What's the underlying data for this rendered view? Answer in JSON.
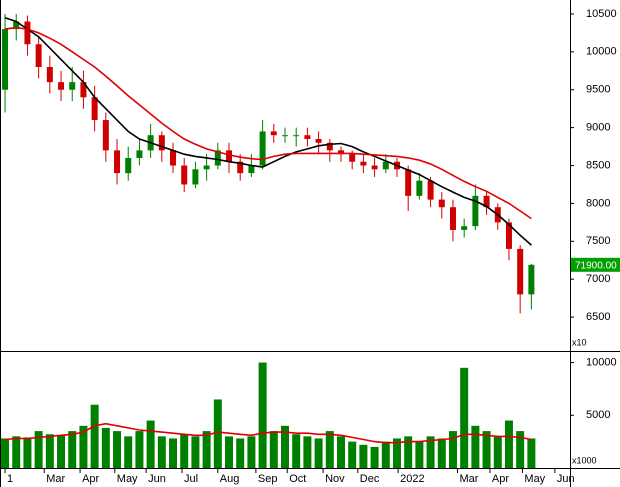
{
  "chart_data": [
    {
      "type": "candlestick",
      "up_color": "#008000",
      "down_color": "#d00000",
      "open": [
        9500,
        10300,
        10400,
        10100,
        9800,
        9600,
        9500,
        9600,
        9400,
        9100,
        8700,
        8400,
        8600,
        8700,
        8900,
        8700,
        8500,
        8250,
        8450,
        8500,
        8700,
        8550,
        8400,
        8500,
        8950,
        8900,
        8900,
        8900,
        8850,
        8800,
        8700,
        8650,
        8550,
        8500,
        8450,
        8550,
        8450,
        8100,
        8300,
        8050,
        7950,
        7650,
        7700,
        8100,
        7950,
        7750,
        7400,
        6800
      ],
      "high": [
        10500,
        10500,
        10480,
        10200,
        9950,
        9750,
        9800,
        9750,
        9550,
        9200,
        8850,
        8750,
        8850,
        9050,
        8950,
        8800,
        8600,
        8550,
        8650,
        8800,
        8800,
        8650,
        8650,
        9100,
        9050,
        9000,
        9000,
        9000,
        8950,
        8850,
        8750,
        8700,
        8650,
        8600,
        8650,
        8600,
        8500,
        8400,
        8350,
        8150,
        8050,
        7800,
        8250,
        8150,
        8000,
        7800,
        7450,
        7200
      ],
      "low": [
        9200,
        10150,
        9950,
        9650,
        9450,
        9350,
        9350,
        9250,
        8950,
        8550,
        8250,
        8300,
        8500,
        8600,
        8550,
        8400,
        8150,
        8200,
        8300,
        8450,
        8400,
        8300,
        8350,
        8450,
        8800,
        8800,
        8750,
        8750,
        8650,
        8550,
        8550,
        8450,
        8400,
        8350,
        8400,
        8350,
        7900,
        8050,
        7950,
        7800,
        7500,
        7550,
        7650,
        7850,
        7650,
        7250,
        6550,
        6600
      ],
      "close": [
        10300,
        10400,
        10100,
        9800,
        9600,
        9500,
        9600,
        9400,
        9100,
        8700,
        8400,
        8600,
        8700,
        8900,
        8700,
        8500,
        8250,
        8450,
        8500,
        8700,
        8550,
        8400,
        8500,
        8950,
        8900,
        8900,
        8900,
        8850,
        8800,
        8700,
        8650,
        8550,
        8500,
        8450,
        8550,
        8450,
        8100,
        8300,
        8050,
        7950,
        7650,
        7700,
        8100,
        7950,
        7750,
        7400,
        6800,
        7190
      ],
      "series": [
        {
          "color": "#000000",
          "values": [
            10450,
            10400,
            10300,
            10200,
            10050,
            9900,
            9750,
            9600,
            9400,
            9250,
            9100,
            8950,
            8850,
            8800,
            8750,
            8700,
            8650,
            8620,
            8600,
            8580,
            8550,
            8530,
            8500,
            8480,
            8550,
            8620,
            8680,
            8720,
            8760,
            8780,
            8790,
            8750,
            8680,
            8620,
            8560,
            8500,
            8440,
            8380,
            8300,
            8220,
            8150,
            8080,
            8030,
            7960,
            7850,
            7720,
            7580,
            7450
          ]
        },
        {
          "color": "#e00000",
          "values": [
            10300,
            10320,
            10300,
            10250,
            10180,
            10100,
            10000,
            9900,
            9800,
            9680,
            9550,
            9420,
            9300,
            9180,
            9060,
            8950,
            8850,
            8780,
            8720,
            8680,
            8640,
            8610,
            8590,
            8580,
            8620,
            8650,
            8660,
            8660,
            8660,
            8660,
            8660,
            8660,
            8650,
            8640,
            8630,
            8620,
            8600,
            8570,
            8520,
            8450,
            8370,
            8290,
            8220,
            8160,
            8080,
            8000,
            7900,
            7800
          ]
        }
      ],
      "last_price": {
        "value": 7190,
        "label": "71900.00"
      },
      "last_price_color": "#00a000",
      "xlim": [
        -0.45,
        50.45
      ],
      "ylim": [
        6066,
        10684
      ],
      "yticks": [
        6500,
        7000,
        7500,
        8000,
        8500,
        9000,
        9500,
        10000,
        10500
      ],
      "y_multiplier": "x10"
    },
    {
      "type": "bar",
      "color": "#008000",
      "values": [
        2800,
        3000,
        2900,
        3500,
        3200,
        3100,
        3500,
        4000,
        6000,
        3800,
        3500,
        3000,
        3500,
        4500,
        3000,
        2800,
        3200,
        3000,
        3500,
        6500,
        3000,
        2800,
        3000,
        10000,
        3500,
        4000,
        3200,
        3000,
        2800,
        3500,
        3000,
        2500,
        2200,
        2000,
        2500,
        2800,
        3000,
        2500,
        3000,
        2800,
        3500,
        9500,
        4000,
        3500,
        3000,
        4500,
        3500,
        2800
      ],
      "series": [
        {
          "color": "#e00000",
          "values": [
            2700,
            2800,
            2800,
            2900,
            3000,
            3100,
            3200,
            3400,
            4000,
            4200,
            4000,
            3800,
            3600,
            3500,
            3400,
            3300,
            3200,
            3100,
            3100,
            3400,
            3300,
            3200,
            3100,
            3300,
            3400,
            3400,
            3300,
            3300,
            3200,
            3200,
            3100,
            2900,
            2700,
            2500,
            2400,
            2400,
            2500,
            2500,
            2600,
            2700,
            2800,
            3200,
            3200,
            3100,
            3000,
            3000,
            2900,
            2700
          ]
        }
      ],
      "xlim": [
        -0.45,
        50.45
      ],
      "ylim": [
        0,
        11000
      ],
      "yticks": [
        5000,
        10000
      ],
      "y_multiplier": "x1000",
      "xticks": [
        {
          "value": 0,
          "label": "1"
        },
        {
          "value": 3.5,
          "label": "Mar"
        },
        {
          "value": 6.7,
          "label": "Apr"
        },
        {
          "value": 9.8,
          "label": "May"
        },
        {
          "value": 12.6,
          "label": "Jun"
        },
        {
          "value": 15.8,
          "label": "Jul"
        },
        {
          "value": 19.0,
          "label": "Aug"
        },
        {
          "value": 22.4,
          "label": "Sep"
        },
        {
          "value": 25.2,
          "label": "Oct"
        },
        {
          "value": 28.4,
          "label": "Nov"
        },
        {
          "value": 31.5,
          "label": "Dec"
        },
        {
          "value": 35.1,
          "label": "2022"
        },
        {
          "value": 40.4,
          "label": "Mar"
        },
        {
          "value": 43.3,
          "label": "Apr"
        },
        {
          "value": 46.2,
          "label": "May"
        },
        {
          "value": 49.1,
          "label": "Jun"
        }
      ]
    }
  ]
}
